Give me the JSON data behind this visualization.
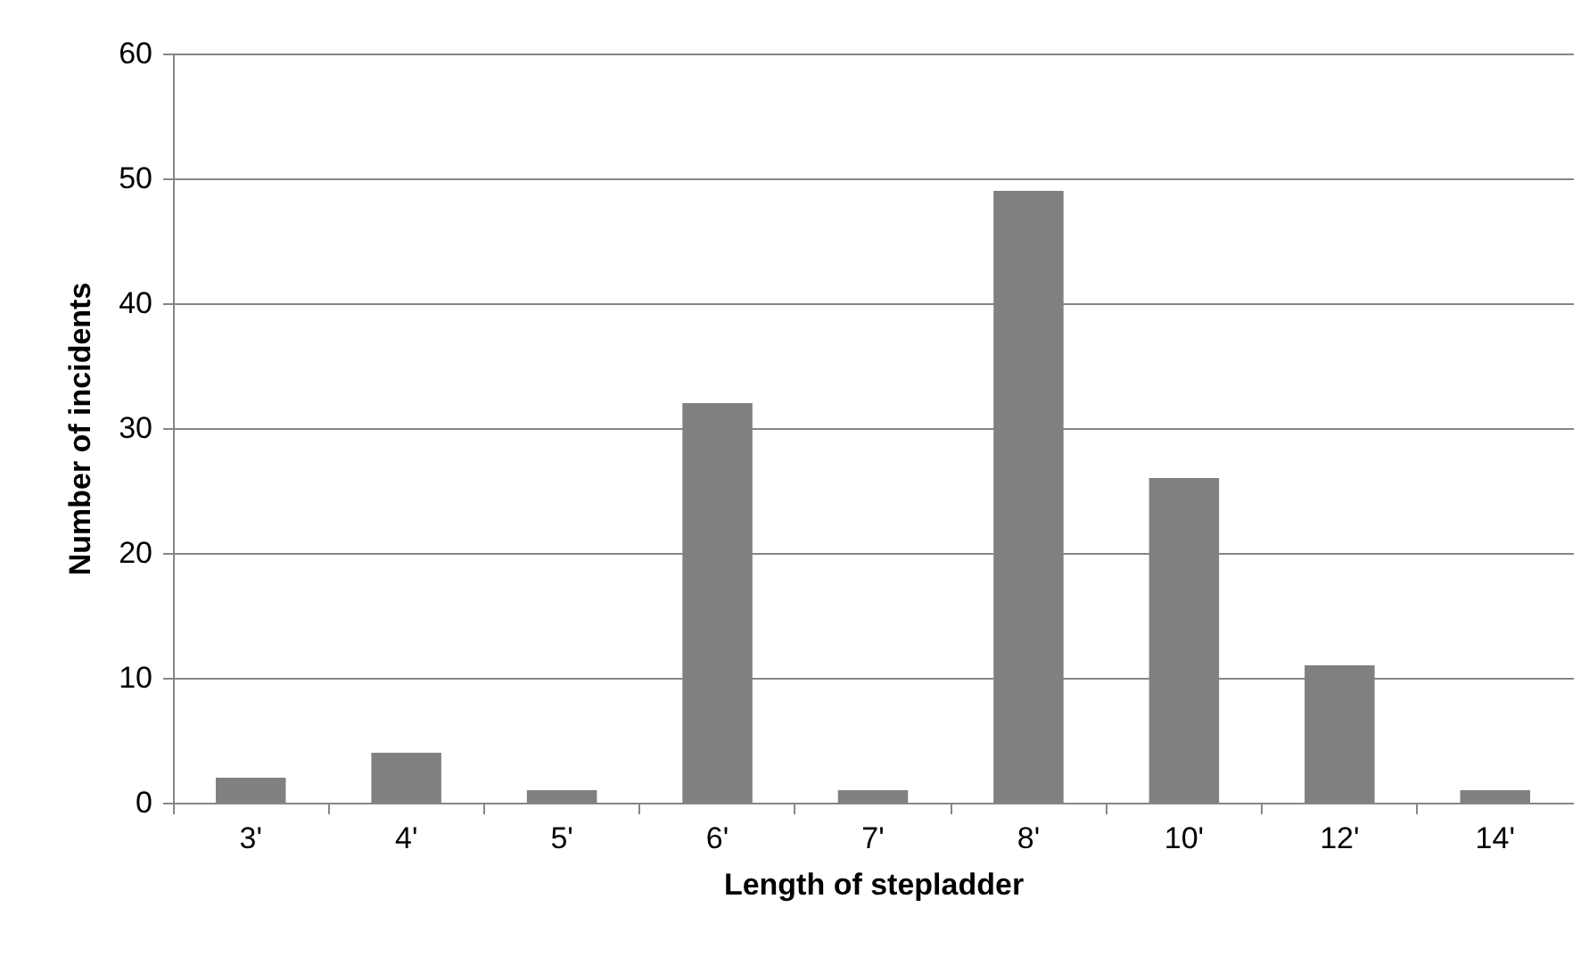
{
  "chart_data": {
    "type": "bar",
    "xlabel": "Length of stepladder",
    "ylabel": "Number of incidents",
    "categories": [
      "3'",
      "4'",
      "5'",
      "6'",
      "7'",
      "8'",
      "10'",
      "12'",
      "14'"
    ],
    "values": [
      2,
      4,
      1,
      32,
      1,
      49,
      26,
      11,
      1
    ],
    "color": "#808080",
    "ylim": [
      0,
      60
    ],
    "yticks": [
      0,
      10,
      20,
      30,
      40,
      50,
      60
    ],
    "grid": "y"
  }
}
